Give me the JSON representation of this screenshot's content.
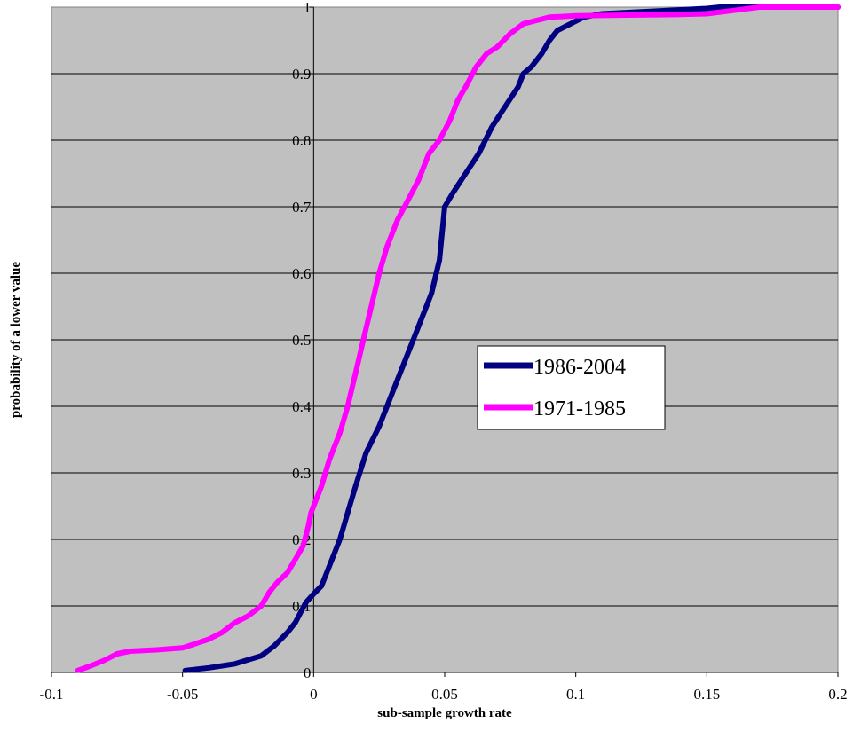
{
  "chart_data": {
    "type": "line",
    "xlabel": "sub-sample growth rate",
    "ylabel": "probability of a lower value",
    "xlim": [
      -0.1,
      0.2
    ],
    "ylim": [
      0,
      1
    ],
    "x_ticks": [
      "-0.1",
      "-0.05",
      "0",
      "0.05",
      "0.1",
      "0.15",
      "0.2"
    ],
    "y_ticks": [
      "0",
      "0.1",
      "0.2",
      "0.3",
      "0.4",
      "0.5",
      "0.6",
      "0.7",
      "0.8",
      "0.9",
      "1"
    ],
    "grid": "horizontal",
    "legend_position": "center-right",
    "plot_background": "#C0C0C0",
    "series": [
      {
        "name": "1986-2004",
        "color": "#000080",
        "x": [
          -0.049,
          -0.04,
          -0.03,
          -0.02,
          -0.015,
          -0.01,
          -0.007,
          -0.005,
          -0.003,
          0.0,
          0.003,
          0.006,
          0.01,
          0.013,
          0.016,
          0.02,
          0.025,
          0.03,
          0.035,
          0.04,
          0.045,
          0.048,
          0.05,
          0.053,
          0.058,
          0.063,
          0.068,
          0.073,
          0.078,
          0.08,
          0.083,
          0.087,
          0.09,
          0.093,
          0.098,
          0.103,
          0.11,
          0.12,
          0.13,
          0.14,
          0.15,
          0.155,
          0.16,
          0.17,
          0.18,
          0.19,
          0.2
        ],
        "values": [
          0.003,
          0.007,
          0.013,
          0.025,
          0.04,
          0.06,
          0.075,
          0.09,
          0.105,
          0.118,
          0.13,
          0.16,
          0.2,
          0.24,
          0.28,
          0.33,
          0.37,
          0.42,
          0.47,
          0.52,
          0.57,
          0.62,
          0.7,
          0.72,
          0.75,
          0.78,
          0.82,
          0.85,
          0.88,
          0.9,
          0.91,
          0.93,
          0.95,
          0.965,
          0.975,
          0.985,
          0.99,
          0.992,
          0.994,
          0.996,
          0.998,
          1.0,
          1.0,
          1.0,
          1.0,
          1.0,
          1.0
        ]
      },
      {
        "name": "1971-1985",
        "color": "#FF00FF",
        "x": [
          -0.09,
          -0.085,
          -0.08,
          -0.075,
          -0.07,
          -0.06,
          -0.05,
          -0.04,
          -0.035,
          -0.03,
          -0.025,
          -0.02,
          -0.017,
          -0.014,
          -0.01,
          -0.007,
          -0.004,
          -0.002,
          -0.001,
          0.0,
          0.003,
          0.006,
          0.01,
          0.013,
          0.016,
          0.019,
          0.022,
          0.025,
          0.028,
          0.032,
          0.036,
          0.04,
          0.044,
          0.048,
          0.052,
          0.055,
          0.058,
          0.062,
          0.066,
          0.07,
          0.075,
          0.08,
          0.085,
          0.09,
          0.1,
          0.12,
          0.14,
          0.15,
          0.16,
          0.17,
          0.2
        ],
        "values": [
          0.003,
          0.01,
          0.018,
          0.028,
          0.032,
          0.034,
          0.037,
          0.05,
          0.06,
          0.075,
          0.085,
          0.1,
          0.12,
          0.135,
          0.15,
          0.17,
          0.19,
          0.22,
          0.24,
          0.25,
          0.28,
          0.32,
          0.36,
          0.4,
          0.45,
          0.5,
          0.55,
          0.6,
          0.64,
          0.68,
          0.71,
          0.74,
          0.78,
          0.8,
          0.83,
          0.86,
          0.88,
          0.91,
          0.93,
          0.94,
          0.96,
          0.975,
          0.98,
          0.985,
          0.987,
          0.988,
          0.989,
          0.99,
          0.995,
          1.0,
          1.0
        ]
      }
    ]
  }
}
